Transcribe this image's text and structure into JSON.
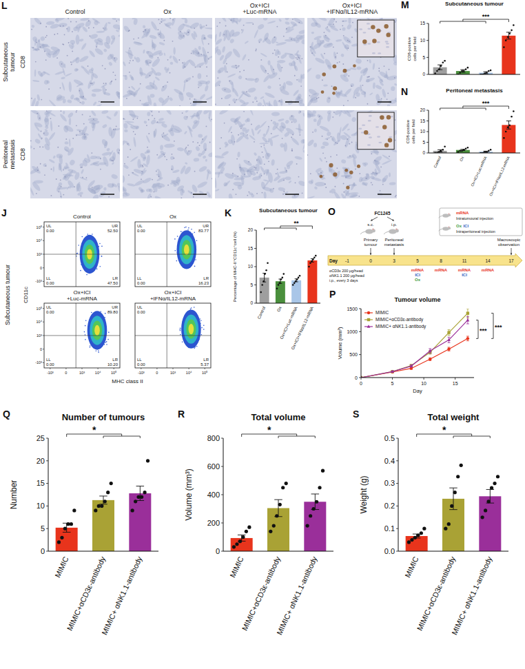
{
  "micrographs": {
    "panel": "L",
    "columns": [
      "Control",
      "Ox",
      "Ox+ICI+Luc-mRNA",
      "Ox+ICI+IFNα/IL12-mRNA"
    ],
    "rows": [
      {
        "tissue": "Subcutaneous tumour",
        "stain": "CD8"
      },
      {
        "tissue": "Peritoneal metastasis",
        "stain": "CD8"
      }
    ]
  },
  "flow_cytometry": {
    "panel": "J",
    "side_label": "Subcutaneous tumour",
    "x_label": "MHC class II",
    "y_label": "CD11c",
    "xticks": [
      "-10³",
      "0",
      "10³",
      "10⁴",
      "10⁵"
    ],
    "yticks": [
      "-10³",
      "0",
      "10³",
      "10⁴",
      "10⁵"
    ],
    "plots": [
      {
        "title": "Control",
        "quadrants": [
          {
            "name": "UL",
            "value": "0.00"
          },
          {
            "name": "UR",
            "value": "52.50"
          },
          {
            "name": "LL",
            "value": "0.00"
          },
          {
            "name": "LR",
            "value": "47.50"
          }
        ]
      },
      {
        "title": "Ox",
        "quadrants": [
          {
            "name": "UL",
            "value": "0.00"
          },
          {
            "name": "UR",
            "value": "83.77"
          },
          {
            "name": "LL",
            "value": "0.00"
          },
          {
            "name": "LR",
            "value": "16.23"
          }
        ]
      },
      {
        "title": "Ox+ICI+Luc-mRNA",
        "quadrants": [
          {
            "name": "UL",
            "value": "0.00"
          },
          {
            "name": "UR",
            "value": "89.80"
          },
          {
            "name": "LL",
            "value": "0.00"
          },
          {
            "name": "LR",
            "value": "10.20"
          }
        ]
      },
      {
        "title": "Ox+ICI+IFNα/IL12-mRNA",
        "quadrants": [
          {
            "name": "UL",
            "value": "0.00"
          },
          null,
          {
            "name": "LL",
            "value": "0.00"
          },
          {
            "name": "LR",
            "value": "5.37"
          }
        ]
      }
    ]
  },
  "timeline": {
    "panel": "O",
    "cell_line": "FC1245",
    "routes": [
      "s.c.",
      "i.p."
    ],
    "axis_label": "Day",
    "days": [
      "-1",
      "0",
      "3",
      "5",
      "8",
      "11",
      "14",
      "17"
    ],
    "milestones": [
      null,
      "Primary tumour",
      "Peritoneal metastasis",
      null,
      null,
      null,
      null,
      "Macroscopic observation"
    ],
    "doses": [
      [],
      [],
      [],
      [
        {
          "label": "mRNA",
          "color": "#e8341c"
        },
        {
          "label": "ICI",
          "color": "#2f63c0"
        },
        {
          "label": "Ox",
          "color": "#3f9b3f"
        }
      ],
      [
        {
          "label": "mRNA",
          "color": "#e8341c"
        }
      ],
      [
        {
          "label": "mRNA",
          "color": "#e8341c"
        },
        {
          "label": "ICI",
          "color": "#2f63c0"
        }
      ],
      [
        {
          "label": "mRNA",
          "color": "#e8341c"
        }
      ],
      []
    ],
    "key_items": [
      {
        "labels": [
          {
            "label": "mRNA",
            "color": "#e8341c"
          }
        ],
        "text": "Intratumoural injection"
      },
      {
        "labels": [
          {
            "label": "Ox",
            "color": "#3f9b3f"
          },
          {
            "label": "ICI",
            "color": "#2f63c0"
          }
        ],
        "text": "Intraperitoneal injection"
      }
    ],
    "depletion": [
      "αCD3ε 200 μg/head",
      "αNK1.1 200 μg/head",
      "i.p., every 3 days"
    ]
  },
  "chart_data": [
    {
      "panel": "M",
      "type": "bar",
      "title": "Subcutaneous tumour",
      "y_label": "CD8-positive cells per field",
      "categories": [
        null,
        null,
        null,
        null
      ],
      "tick_labels": "y",
      "values": [
        2.1,
        1.0,
        0.5,
        11.4
      ],
      "errors": [
        0.7,
        0.4,
        0.3,
        1.0
      ],
      "points": [
        [
          0.3,
          1,
          1.5,
          2.5,
          3.5,
          4
        ],
        [
          0,
          0.5,
          1,
          1,
          1.5,
          2
        ],
        [
          0,
          0,
          0.3,
          0.5,
          1,
          1.2
        ],
        [
          8,
          10,
          11,
          12,
          13,
          14.5
        ]
      ],
      "colors": [
        "#9e9e9e",
        "#4a8f3c",
        "#a9c6e8",
        "#e8341c"
      ],
      "ylim": [
        0,
        15
      ],
      "yticks": [
        0,
        5,
        10,
        15
      ],
      "annotations": [
        "***"
      ]
    },
    {
      "panel": "N",
      "type": "bar",
      "title": "Peritoneal metastasis",
      "y_label": "CD8-positive cells per field",
      "categories": [
        "Control",
        "Ox",
        "Ox+ICI+Luc-mRNA",
        "Ox+ICI+IFNα/IL12-mRNA"
      ],
      "values": [
        1.0,
        1.4,
        0.6,
        13.1
      ],
      "errors": [
        0.5,
        0.3,
        0.25,
        1.9
      ],
      "points": [
        [
          0,
          0,
          0.5,
          1,
          1.5,
          3
        ],
        [
          0.5,
          1,
          1,
          1.5,
          2,
          2.5
        ],
        [
          0,
          0,
          0.5,
          0.5,
          1,
          1.5
        ],
        [
          7,
          10,
          12,
          13,
          17,
          19.5
        ]
      ],
      "colors": [
        "#9e9e9e",
        "#4a8f3c",
        "#a9c6e8",
        "#e8341c"
      ],
      "ylim": [
        0,
        20
      ],
      "yticks": [
        0,
        5,
        10,
        15,
        20
      ],
      "annotations": [
        "***"
      ]
    },
    {
      "panel": "K",
      "type": "bar",
      "title": "Subcutaneous tumour",
      "y_label": "Percentage of MHC-II⁺CD11c⁺cell (%)",
      "categories": [
        "Control",
        "Ox",
        "Ox+ICI+Luc-mRNA",
        "Ox+ICI+IFNα/IL12-mRNA"
      ],
      "values": [
        7.0,
        6.0,
        6.25,
        11.7
      ],
      "errors": [
        1.2,
        0.6,
        0.4,
        0.45
      ],
      "points": [
        [
          3,
          5,
          6,
          8,
          9,
          11
        ],
        [
          4,
          5,
          5.5,
          6.5,
          7,
          8
        ],
        [
          5,
          5.5,
          6,
          6.5,
          7,
          7.5
        ],
        [
          10,
          11,
          11.5,
          12,
          12.5,
          13
        ]
      ],
      "colors": [
        "#9e9e9e",
        "#4a8f3c",
        "#a9c6e8",
        "#e8341c"
      ],
      "ylim": [
        0,
        20
      ],
      "yticks": [
        0,
        5,
        10,
        15,
        20
      ],
      "annotations": [
        "**"
      ]
    },
    {
      "panel": "P",
      "type": "line",
      "title": "Tumour volume",
      "x_label": "Day",
      "y_label": "Volume (mm³)",
      "x": [
        0,
        5,
        8,
        11,
        14,
        17
      ],
      "series": [
        {
          "name": "MIMIC",
          "color": "#e8341c",
          "marker": "circle",
          "line_style": "solid",
          "values": [
            0,
            120,
            200,
            400,
            620,
            850
          ],
          "errors": [
            0,
            15,
            20,
            30,
            40,
            50
          ]
        },
        {
          "name": "MIMIC+αCD3ε-antibody",
          "color": "#a9a235",
          "marker": "square",
          "line_style": "solid",
          "values": [
            0,
            130,
            260,
            550,
            980,
            1400
          ],
          "errors": [
            0,
            15,
            25,
            40,
            60,
            100
          ]
        },
        {
          "name": "MIMIC+ αNK1.1-antibody",
          "color": "#9a2f9a",
          "marker": "triangle",
          "line_style": "solid",
          "values": [
            0,
            130,
            250,
            580,
            820,
            1250
          ],
          "errors": [
            0,
            15,
            25,
            50,
            60,
            80
          ]
        }
      ],
      "xlim": [
        0,
        18
      ],
      "xticks": [
        0,
        5,
        10,
        15
      ],
      "ylim": [
        0,
        1500
      ],
      "yticks": [
        0,
        500,
        1000,
        1500
      ],
      "legend": "upper left",
      "annotations": [
        "***",
        "***"
      ]
    },
    {
      "panel": "Q",
      "type": "bar",
      "title": "Number of tumours",
      "y_label": "Number",
      "categories": [
        "MIMIC",
        "MIMIC+αCD3ε-antibody",
        "MIMIC+ αNK1.1-antibody"
      ],
      "values": [
        5.2,
        11.3,
        12.8
      ],
      "errors": [
        1.0,
        0.9,
        1.6
      ],
      "points": [
        [
          2,
          3,
          5,
          6,
          6,
          9
        ],
        [
          9,
          10,
          10,
          11,
          13,
          15
        ],
        [
          9,
          11,
          12,
          12,
          13,
          20
        ]
      ],
      "colors": [
        "#e8341c",
        "#a9a235",
        "#9a2f9a"
      ],
      "ylim": [
        0,
        25
      ],
      "yticks": [
        0,
        5,
        10,
        15,
        20,
        25
      ],
      "annotations": [
        "*"
      ]
    },
    {
      "panel": "R",
      "type": "bar",
      "title": "Total volume",
      "y_label": "Volume (mm³)",
      "categories": [
        "MIMIC",
        "MIMIC+αCD3ε-antibody",
        "MIMIC+ αNK1.1-antibody"
      ],
      "values": [
        93,
        305,
        350
      ],
      "errors": [
        22,
        60,
        55
      ],
      "points": [
        [
          30,
          50,
          70,
          100,
          140,
          170
        ],
        [
          140,
          180,
          250,
          330,
          450,
          480
        ],
        [
          180,
          250,
          300,
          350,
          450,
          570
        ]
      ],
      "colors": [
        "#e8341c",
        "#a9a235",
        "#9a2f9a"
      ],
      "ylim": [
        0,
        800
      ],
      "yticks": [
        0,
        200,
        400,
        600,
        800
      ],
      "annotations": [
        "*"
      ]
    },
    {
      "panel": "S",
      "type": "bar",
      "title": "Total weight",
      "y_label": "Weight (g)",
      "categories": [
        "MIMIC",
        "MIMIC+αCD3ε-antibody",
        "MIMIC+ αNK1.1-antibody"
      ],
      "values": [
        0.067,
        0.232,
        0.243
      ],
      "errors": [
        0.009,
        0.048,
        0.03
      ],
      "points": [
        [
          0.04,
          0.05,
          0.06,
          0.07,
          0.08,
          0.1
        ],
        [
          0.1,
          0.12,
          0.2,
          0.26,
          0.33,
          0.38
        ],
        [
          0.15,
          0.18,
          0.22,
          0.28,
          0.3,
          0.33
        ]
      ],
      "colors": [
        "#e8341c",
        "#a9a235",
        "#9a2f9a"
      ],
      "ylim": [
        0,
        0.5
      ],
      "yticks": [
        {
          "value": 0,
          "label": "0.0"
        },
        {
          "value": 0.1,
          "label": "0.1"
        },
        {
          "value": 0.2,
          "label": "0.2"
        },
        {
          "value": 0.3,
          "label": "0.3"
        },
        {
          "value": 0.4,
          "label": "0.4"
        },
        {
          "value": 0.5,
          "label": "0.5"
        }
      ],
      "annotations": [
        "*"
      ]
    }
  ]
}
